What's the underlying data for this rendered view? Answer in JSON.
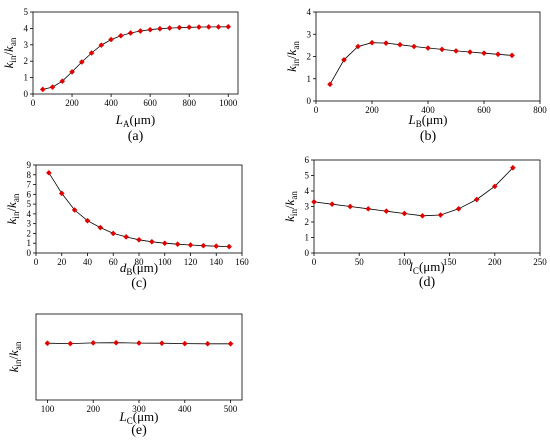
{
  "chart_data": [
    {
      "type": "line",
      "panel_label": "(a)",
      "xlabel": "L_A(μm)",
      "ylabel": "k_in/k_an",
      "xlim": [
        0,
        1050
      ],
      "ylim": [
        0,
        5
      ],
      "xticks": [
        0,
        200,
        400,
        600,
        800,
        1000
      ],
      "yticks": [
        0,
        1,
        2,
        3,
        4,
        5
      ],
      "marker_color": "#e00000",
      "line_color": "#000000",
      "x": [
        50,
        100,
        150,
        200,
        250,
        300,
        350,
        400,
        450,
        500,
        550,
        600,
        650,
        700,
        750,
        800,
        850,
        900,
        950,
        1000
      ],
      "y": [
        0.28,
        0.42,
        0.78,
        1.35,
        1.95,
        2.5,
        2.98,
        3.32,
        3.55,
        3.72,
        3.84,
        3.92,
        3.98,
        4.02,
        4.05,
        4.07,
        4.08,
        4.09,
        4.09,
        4.1
      ]
    },
    {
      "type": "line",
      "panel_label": "(b)",
      "xlabel": "L_B(μm)",
      "ylabel": "k_in/k_an",
      "xlim": [
        0,
        800
      ],
      "ylim": [
        0,
        4
      ],
      "xticks": [
        0,
        200,
        400,
        600,
        800
      ],
      "yticks": [
        0,
        1,
        2,
        3,
        4
      ],
      "marker_color": "#e00000",
      "line_color": "#000000",
      "x": [
        50,
        100,
        150,
        200,
        250,
        300,
        350,
        400,
        450,
        500,
        550,
        600,
        650,
        700
      ],
      "y": [
        0.75,
        1.85,
        2.45,
        2.62,
        2.6,
        2.53,
        2.45,
        2.38,
        2.32,
        2.25,
        2.2,
        2.15,
        2.1,
        2.05
      ]
    },
    {
      "type": "line",
      "panel_label": "(c)",
      "xlabel": "d_B(μm)",
      "ylabel": "k_in/k_an",
      "xlim": [
        0,
        160
      ],
      "ylim": [
        0,
        9
      ],
      "xticks": [
        0,
        20,
        40,
        60,
        80,
        100,
        120,
        140,
        160
      ],
      "yticks": [
        0,
        1,
        2,
        3,
        4,
        5,
        6,
        7,
        8,
        9
      ],
      "marker_color": "#e00000",
      "line_color": "#000000",
      "x": [
        10,
        20,
        30,
        40,
        50,
        60,
        70,
        80,
        90,
        100,
        110,
        120,
        130,
        140,
        150
      ],
      "y": [
        8.2,
        6.1,
        4.4,
        3.3,
        2.6,
        2.0,
        1.65,
        1.35,
        1.15,
        1.0,
        0.9,
        0.82,
        0.75,
        0.7,
        0.65
      ]
    },
    {
      "type": "line",
      "panel_label": "(d)",
      "xlabel": "l_C(μm)",
      "ylabel": "k_in/k_an",
      "xlim": [
        0,
        250
      ],
      "ylim": [
        0,
        6
      ],
      "xticks": [
        0,
        50,
        100,
        150,
        200,
        250
      ],
      "yticks": [
        0,
        1,
        2,
        3,
        4,
        5,
        6
      ],
      "marker_color": "#e00000",
      "line_color": "#000000",
      "x": [
        0,
        20,
        40,
        60,
        80,
        100,
        120,
        140,
        160,
        180,
        200,
        220
      ],
      "y": [
        3.3,
        3.15,
        3.0,
        2.85,
        2.7,
        2.55,
        2.4,
        2.45,
        2.85,
        3.45,
        4.3,
        5.5
      ]
    },
    {
      "type": "line",
      "panel_label": "(e)",
      "xlabel": "L_C(μm)",
      "ylabel": "k_in/k_an",
      "xlim": [
        75,
        525
      ],
      "ylim": [
        0,
        5
      ],
      "xticks": [
        100,
        200,
        300,
        400,
        500
      ],
      "yticks": [],
      "marker_color": "#e00000",
      "line_color": "#000000",
      "x": [
        100,
        150,
        200,
        250,
        300,
        350,
        400,
        450,
        500
      ],
      "y": [
        3.3,
        3.28,
        3.32,
        3.33,
        3.31,
        3.3,
        3.28,
        3.27,
        3.27
      ]
    }
  ]
}
